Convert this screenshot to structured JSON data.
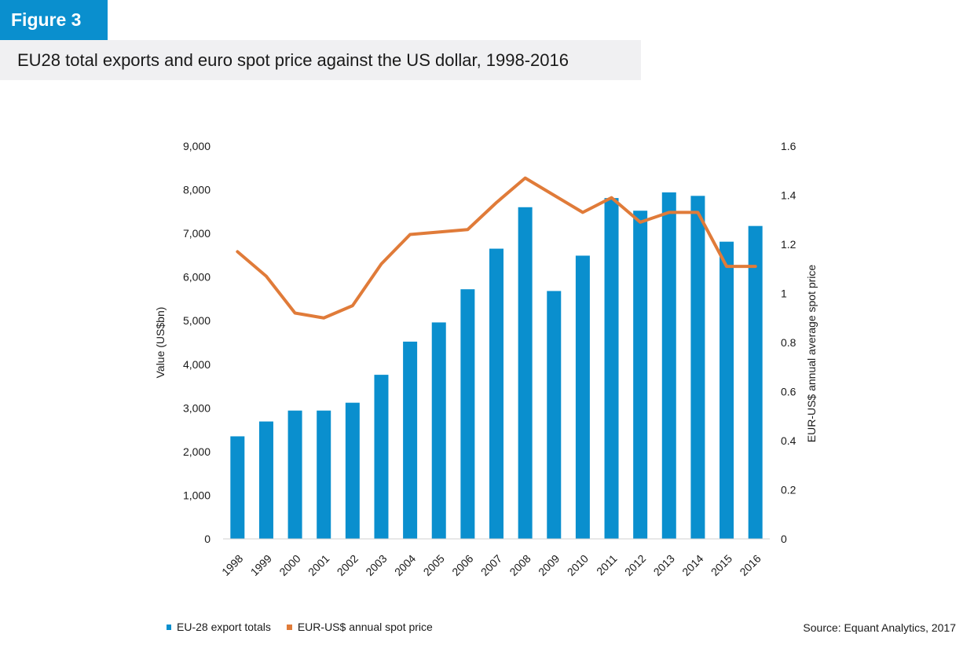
{
  "figure_label": "Figure 3",
  "title": "EU28 total exports and euro spot price against the US dollar, 1998-2016",
  "source": "Source: Equant Analytics, 2017",
  "colors": {
    "bar": "#0a8fce",
    "line": "#e07b39",
    "tag_bg": "#0a8fce",
    "title_bg": "#f0f0f2"
  },
  "chart_data": {
    "type": "bar",
    "categories": [
      "1998",
      "1999",
      "2000",
      "2001",
      "2002",
      "2003",
      "2004",
      "2005",
      "2006",
      "2007",
      "2008",
      "2009",
      "2010",
      "2011",
      "2012",
      "2013",
      "2014",
      "2015",
      "2016"
    ],
    "series": [
      {
        "name": "EU-28 export totals",
        "type": "bar",
        "axis": "left",
        "values": [
          2350,
          2690,
          2940,
          2940,
          3120,
          3760,
          4520,
          4960,
          5720,
          6650,
          7600,
          5680,
          6490,
          7810,
          7520,
          7940,
          7860,
          6810,
          7170
        ]
      },
      {
        "name": "EUR-US$ annual spot price",
        "type": "line",
        "axis": "right",
        "values": [
          1.17,
          1.07,
          0.92,
          0.9,
          0.95,
          1.12,
          1.24,
          1.25,
          1.26,
          1.37,
          1.47,
          1.4,
          1.33,
          1.39,
          1.29,
          1.33,
          1.33,
          1.11,
          1.11
        ]
      }
    ],
    "ylabel_left": "Value (US$bn)",
    "ylabel_right": "EUR-US$ annual average spot price",
    "xlabel": "",
    "ylim_left": [
      0,
      9000
    ],
    "ylim_right": [
      0,
      1.6
    ],
    "yticks_left": [
      "0",
      "1,000",
      "2,000",
      "3,000",
      "4,000",
      "5,000",
      "6,000",
      "7,000",
      "8,000",
      "9,000"
    ],
    "yticks_right": [
      "0",
      "0.2",
      "0.4",
      "0.6",
      "0.8",
      "1",
      "1.2",
      "1.4",
      "1.6"
    ],
    "grid": false,
    "legend_position": "bottom-left"
  }
}
